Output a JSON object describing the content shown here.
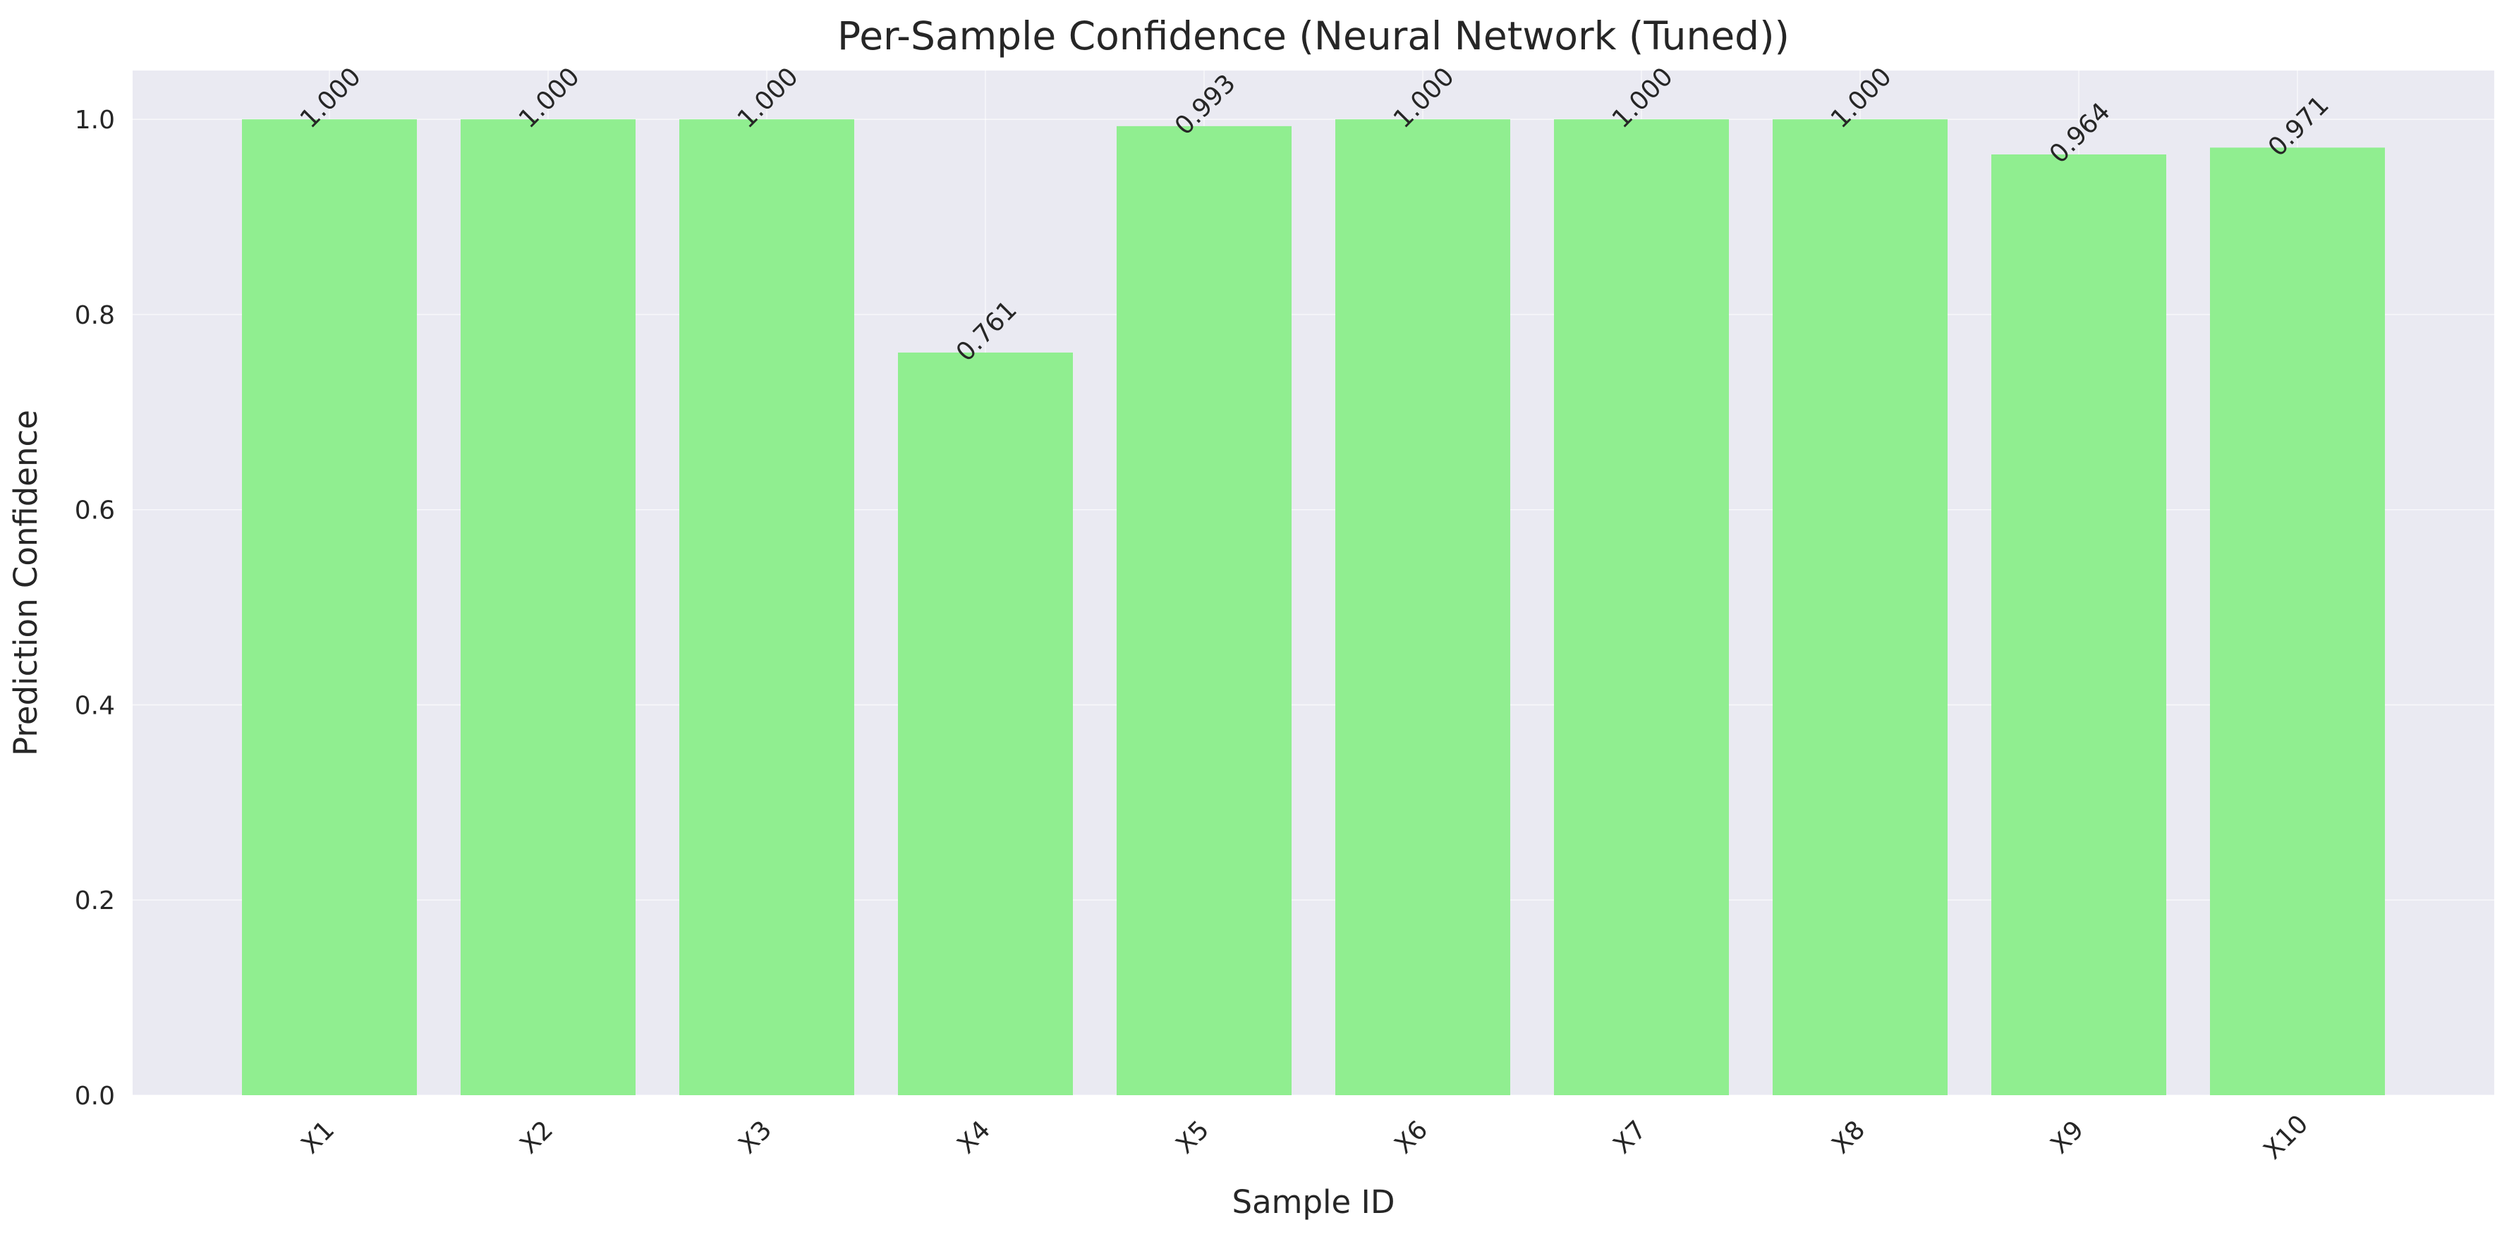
{
  "chart_data": {
    "type": "bar",
    "title": "Per-Sample Confidence (Neural Network (Tuned))",
    "xlabel": "Sample ID",
    "ylabel": "Prediction Confidence",
    "categories": [
      "X1",
      "X2",
      "X3",
      "X4",
      "X5",
      "X6",
      "X7",
      "X8",
      "X9",
      "X10"
    ],
    "values": [
      1.0,
      1.0,
      1.0,
      0.761,
      0.993,
      1.0,
      1.0,
      1.0,
      0.964,
      0.971
    ],
    "value_labels": [
      "1.000",
      "1.000",
      "1.000",
      "0.761",
      "0.993",
      "1.000",
      "1.000",
      "1.000",
      "0.964",
      "0.971"
    ],
    "ylim": [
      0,
      1.05
    ],
    "yticks": [
      0.0,
      0.2,
      0.4,
      0.6,
      0.8,
      1.0
    ],
    "ytick_labels": [
      "0.0",
      "0.2",
      "0.4",
      "0.6",
      "0.8",
      "1.0"
    ],
    "grid": true,
    "bar_color": "#90EE90",
    "plot_background": "#EAEAF2",
    "grid_color": "#FFFFFF"
  }
}
